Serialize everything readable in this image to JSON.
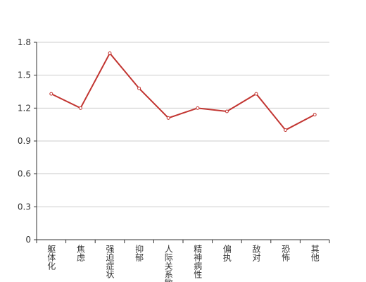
{
  "chart_data": {
    "type": "line",
    "categories": [
      "躯体化",
      "焦虑",
      "强迫症状",
      "抑郁",
      "人际关系敏感",
      "精神病性",
      "偏执",
      "敌对",
      "恐怖",
      "其他"
    ],
    "values": [
      1.33,
      1.2,
      1.7,
      1.38,
      1.11,
      1.2,
      1.17,
      1.33,
      1.0,
      1.14
    ],
    "color": "#c23531",
    "ylim": [
      0,
      1.8
    ],
    "yticks": [
      0,
      0.3,
      0.6,
      0.9,
      1.2,
      1.5,
      1.8
    ],
    "grid": true
  }
}
